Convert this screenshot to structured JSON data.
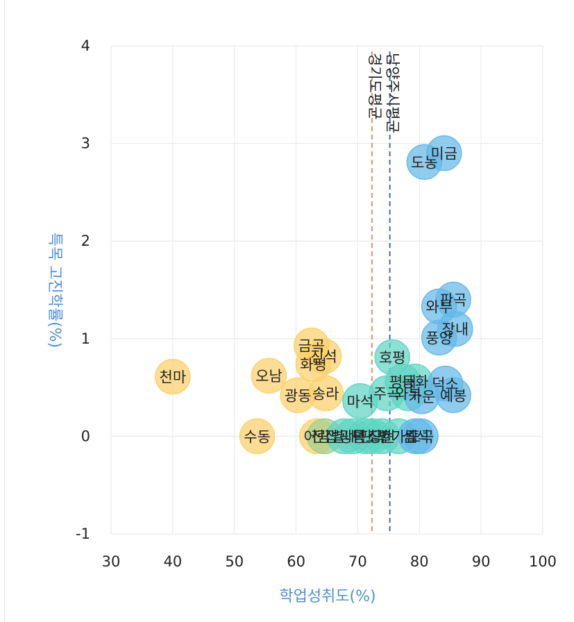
{
  "chart_data": {
    "type": "scatter",
    "xlabel": "학업성취도(%)",
    "ylabel": "특목 고진학률(%)",
    "xlim": [
      30,
      100
    ],
    "ylim": [
      -1,
      4
    ],
    "xticks": [
      30,
      40,
      50,
      60,
      70,
      80,
      90,
      100
    ],
    "yticks": [
      -1,
      0,
      1,
      2,
      3,
      4
    ],
    "grid": true,
    "legend": "none",
    "colors": {
      "yellow": "#fcd06a",
      "teal": "#5fd4c4",
      "blue": "#64b8e8",
      "green": "#9fcf8e"
    },
    "reference_lines": [
      {
        "label": "경기도평균",
        "x": 72.3,
        "color": "#e0915a"
      },
      {
        "label": "남양주시평균",
        "x": 75.2,
        "color": "#4a6a8a"
      }
    ],
    "points": [
      {
        "label": "천마",
        "x": 40.0,
        "y": 0.61,
        "color": "yellow"
      },
      {
        "label": "수동",
        "x": 53.7,
        "y": 0.0,
        "color": "yellow"
      },
      {
        "label": "오남",
        "x": 55.6,
        "y": 0.62,
        "color": "yellow"
      },
      {
        "label": "광동",
        "x": 60.3,
        "y": 0.42,
        "color": "yellow"
      },
      {
        "label": "금곡",
        "x": 62.5,
        "y": 0.93,
        "color": "yellow"
      },
      {
        "label": "화평",
        "x": 62.8,
        "y": 0.74,
        "color": "yellow"
      },
      {
        "label": "진석",
        "x": 64.5,
        "y": 0.82,
        "color": "yellow"
      },
      {
        "label": "송라",
        "x": 64.8,
        "y": 0.44,
        "color": "yellow"
      },
      {
        "label": "어람",
        "x": 63.4,
        "y": 0.0,
        "color": "yellow"
      },
      {
        "label": "진접",
        "x": 64.6,
        "y": 0.0,
        "color": "green"
      },
      {
        "label": "별내",
        "x": 67.8,
        "y": 0.0,
        "color": "teal"
      },
      {
        "label": "광릉",
        "x": 69.2,
        "y": 0.0,
        "color": "teal"
      },
      {
        "label": "마석",
        "x": 70.4,
        "y": 0.36,
        "color": "teal"
      },
      {
        "label": "덕소",
        "x": 71.3,
        "y": 0.0,
        "color": "teal"
      },
      {
        "label": "판곡",
        "x": 72.4,
        "y": 0.0,
        "color": "teal"
      },
      {
        "label": "창현",
        "x": 73.9,
        "y": 0.0,
        "color": "teal"
      },
      {
        "label": "주곡",
        "x": 74.7,
        "y": 0.44,
        "color": "teal"
      },
      {
        "label": "호평",
        "x": 75.6,
        "y": 0.81,
        "color": "teal"
      },
      {
        "label": "별가람",
        "x": 76.6,
        "y": 0.0,
        "color": "teal"
      },
      {
        "label": "평내",
        "x": 77.3,
        "y": 0.56,
        "color": "teal"
      },
      {
        "label": "와부",
        "x": 78.2,
        "y": 0.44,
        "color": "teal"
      },
      {
        "label": "동화",
        "x": 79.3,
        "y": 0.56,
        "color": "teal"
      },
      {
        "label": "심석",
        "x": 79.4,
        "y": 0.0,
        "color": "blue"
      },
      {
        "label": "가운",
        "x": 80.4,
        "y": 0.41,
        "color": "blue"
      },
      {
        "label": "도곡",
        "x": 80.2,
        "y": 0.0,
        "color": "blue"
      },
      {
        "label": "도농",
        "x": 80.8,
        "y": 2.81,
        "color": "blue"
      },
      {
        "label": "미금",
        "x": 84.0,
        "y": 2.9,
        "color": "blue"
      },
      {
        "label": "풍양",
        "x": 83.2,
        "y": 1.01,
        "color": "blue"
      },
      {
        "label": "와부",
        "x": 83.2,
        "y": 1.33,
        "color": "blue"
      },
      {
        "label": "판곡",
        "x": 85.5,
        "y": 1.4,
        "color": "blue"
      },
      {
        "label": "장내",
        "x": 85.8,
        "y": 1.1,
        "color": "blue"
      },
      {
        "label": "덕소",
        "x": 84.2,
        "y": 0.54,
        "color": "blue"
      },
      {
        "label": "예봉",
        "x": 85.5,
        "y": 0.42,
        "color": "blue"
      }
    ]
  }
}
